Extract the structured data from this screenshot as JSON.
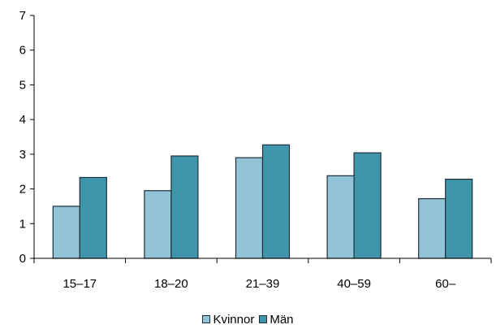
{
  "chart_data": {
    "type": "bar",
    "categories": [
      "15–17",
      "18–20",
      "21–39",
      "40–59",
      "60–"
    ],
    "series": [
      {
        "name": "Kvinnor",
        "values": [
          1.5,
          1.95,
          2.9,
          2.38,
          1.72
        ],
        "color": "#93c3d6"
      },
      {
        "name": "Män",
        "values": [
          2.33,
          2.95,
          3.27,
          3.04,
          2.28
        ],
        "color": "#3f96ab"
      }
    ],
    "ylim": [
      0,
      7
    ],
    "yticks": [
      0,
      1,
      2,
      3,
      4,
      5,
      6,
      7
    ],
    "grid": false,
    "legend_position": "bottom",
    "bar_edge_color": "#1d2f3a",
    "axis_color": "#000000"
  }
}
